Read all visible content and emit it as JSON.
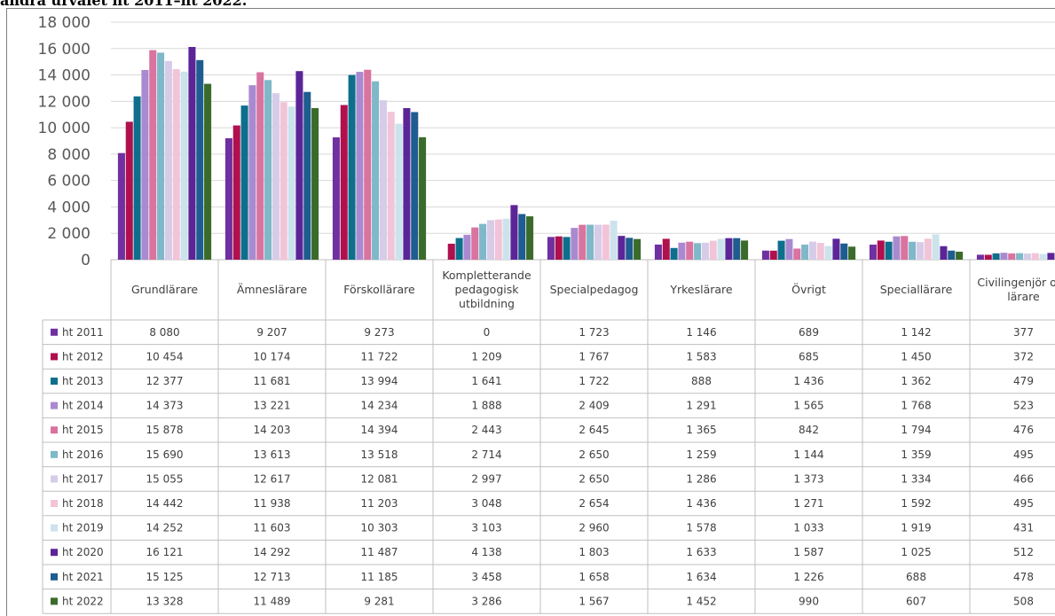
{
  "page": {
    "heading": "andra urvalet ht 2011–ht 2022."
  },
  "chart_data": {
    "type": "bar",
    "title": "",
    "xlabel": "",
    "ylabel": "",
    "ylim": [
      0,
      18000
    ],
    "y_ticks": [
      "0",
      "2 000",
      "4 000",
      "6 000",
      "8 000",
      "10 000",
      "12 000",
      "14 000",
      "16 000",
      "18 000"
    ],
    "grid": true,
    "legend": "data-table",
    "categories": [
      "Grundlärare",
      "Ämneslärare",
      "Förskollärare",
      "Kompletterande pedagogisk utbildning",
      "Specialpedagog",
      "Yrkeslärare",
      "Övrigt",
      "Speciallärare",
      "Civilingenjör och lärare"
    ],
    "series": [
      {
        "name": "ht 2011",
        "color": "#7030a0",
        "values": [
          8080,
          9207,
          9273,
          0,
          1723,
          1146,
          689,
          1142,
          377
        ]
      },
      {
        "name": "ht 2012",
        "color": "#b0104e",
        "values": [
          10454,
          10174,
          11722,
          1209,
          1767,
          1583,
          685,
          1450,
          372
        ]
      },
      {
        "name": "ht 2013",
        "color": "#0e6f8d",
        "values": [
          12377,
          11681,
          13994,
          1641,
          1722,
          888,
          1436,
          1362,
          479
        ]
      },
      {
        "name": "ht 2014",
        "color": "#a98ad0",
        "values": [
          14373,
          13221,
          14234,
          1888,
          2409,
          1291,
          1565,
          1768,
          523
        ]
      },
      {
        "name": "ht 2015",
        "color": "#d9739f",
        "values": [
          15878,
          14203,
          14394,
          2443,
          2645,
          1365,
          842,
          1794,
          476
        ]
      },
      {
        "name": "ht 2016",
        "color": "#7fb8c9",
        "values": [
          15690,
          13613,
          13518,
          2714,
          2650,
          1259,
          1144,
          1359,
          495
        ]
      },
      {
        "name": "ht 2017",
        "color": "#d6cce8",
        "values": [
          15055,
          12617,
          12081,
          2997,
          2650,
          1286,
          1373,
          1334,
          466
        ]
      },
      {
        "name": "ht 2018",
        "color": "#f2c4d8",
        "values": [
          14442,
          11938,
          11203,
          3048,
          2654,
          1436,
          1271,
          1592,
          495
        ]
      },
      {
        "name": "ht 2019",
        "color": "#cce3ec",
        "values": [
          14252,
          11603,
          10303,
          3103,
          2960,
          1578,
          1033,
          1919,
          431
        ]
      },
      {
        "name": "ht 2020",
        "color": "#5b2598",
        "values": [
          16121,
          14292,
          11487,
          4138,
          1803,
          1633,
          1587,
          1025,
          512
        ]
      },
      {
        "name": "ht 2021",
        "color": "#1f5c8f",
        "values": [
          15125,
          12713,
          11185,
          3458,
          1658,
          1634,
          1226,
          688,
          478
        ]
      },
      {
        "name": "ht 2022",
        "color": "#3b6b2b",
        "values": [
          13328,
          11489,
          9281,
          3286,
          1567,
          1452,
          990,
          607,
          508
        ]
      }
    ],
    "table_values": [
      [
        "8 080",
        "9 207",
        "9 273",
        "0",
        "1 723",
        "1 146",
        "689",
        "1 142",
        "377"
      ],
      [
        "10 454",
        "10 174",
        "11 722",
        "1 209",
        "1 767",
        "1 583",
        "685",
        "1 450",
        "372"
      ],
      [
        "12 377",
        "11 681",
        "13 994",
        "1 641",
        "1 722",
        "888",
        "1 436",
        "1 362",
        "479"
      ],
      [
        "14 373",
        "13 221",
        "14 234",
        "1 888",
        "2 409",
        "1 291",
        "1 565",
        "1 768",
        "523"
      ],
      [
        "15 878",
        "14 203",
        "14 394",
        "2 443",
        "2 645",
        "1 365",
        "842",
        "1 794",
        "476"
      ],
      [
        "15 690",
        "13 613",
        "13 518",
        "2 714",
        "2 650",
        "1 259",
        "1 144",
        "1 359",
        "495"
      ],
      [
        "15 055",
        "12 617",
        "12 081",
        "2 997",
        "2 650",
        "1 286",
        "1 373",
        "1 334",
        "466"
      ],
      [
        "14 442",
        "11 938",
        "11 203",
        "3 048",
        "2 654",
        "1 436",
        "1 271",
        "1 592",
        "495"
      ],
      [
        "14 252",
        "11 603",
        "10 303",
        "3 103",
        "2 960",
        "1 578",
        "1 033",
        "1 919",
        "431"
      ],
      [
        "16 121",
        "14 292",
        "11 487",
        "4 138",
        "1 803",
        "1 633",
        "1 587",
        "1 025",
        "512"
      ],
      [
        "15 125",
        "12 713",
        "11 185",
        "3 458",
        "1 658",
        "1 634",
        "1 226",
        "688",
        "478"
      ],
      [
        "13 328",
        "11 489",
        "9 281",
        "3 286",
        "1 567",
        "1 452",
        "990",
        "607",
        "508"
      ]
    ]
  }
}
